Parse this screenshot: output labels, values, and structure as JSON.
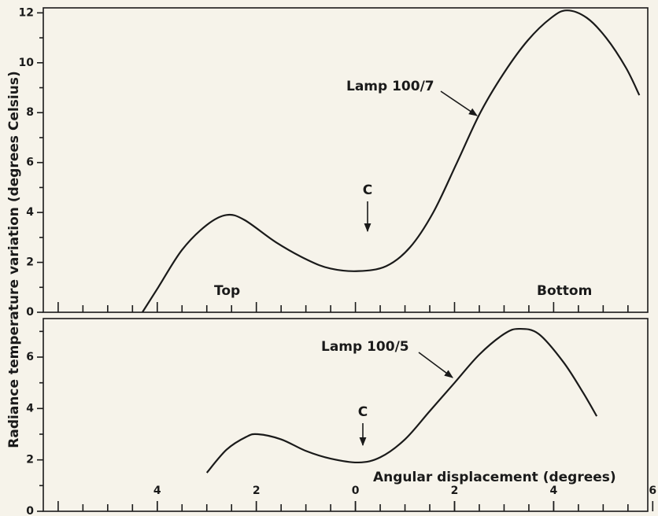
{
  "chart_data": [
    {
      "type": "line",
      "ylabel": "Radiance temperature variation (degrees Celsius)",
      "annotations": [
        "Lamp 100/7",
        "C",
        "Top",
        "Bottom"
      ],
      "series": [
        {
          "name": "Lamp 100/7",
          "color": "#1a1a1a",
          "x": [
            -4.3,
            -3.98,
            -3.5,
            -3.0,
            -2.6,
            -2.24,
            -1.6,
            -0.97,
            -0.5,
            0.06,
            0.62,
            1.1,
            1.57,
            2.05,
            2.52,
            3.0,
            3.48,
            3.95,
            4.27,
            4.67,
            5.06,
            5.46,
            5.73
          ],
          "values": [
            0,
            1.0,
            2.5,
            3.5,
            3.9,
            3.7,
            2.8,
            2.1,
            1.75,
            1.65,
            1.85,
            2.6,
            4.0,
            6.0,
            8.0,
            9.6,
            10.9,
            11.8,
            12.1,
            11.8,
            11.0,
            9.8,
            8.7
          ]
        }
      ],
      "xlim": [
        -6.3,
        5.9
      ],
      "xminorticks": [
        -6,
        -5.5,
        -5,
        -4.5,
        -4,
        -3.5,
        -3,
        -2.5,
        -2,
        -1.5,
        -1,
        -0.5,
        0,
        0.5,
        1,
        1.5,
        2,
        2.5,
        3,
        3.5,
        4,
        4.5,
        5,
        5.5
      ],
      "ylim": [
        0,
        12.2
      ],
      "yticks": [
        0,
        2,
        4,
        6,
        8,
        10,
        12
      ],
      "yminorticks": [
        1,
        3,
        5,
        7,
        9,
        11
      ]
    },
    {
      "type": "line",
      "xlabel": "Angular displacement (degrees)",
      "annotations": [
        "Lamp 100/5",
        "C"
      ],
      "series": [
        {
          "name": "Lamp 100/5",
          "color": "#1a1a1a",
          "x": [
            -3.0,
            -2.6,
            -2.2,
            -1.97,
            -1.5,
            -1.0,
            -0.5,
            0.06,
            0.5,
            1.0,
            1.5,
            2.0,
            2.5,
            3.0,
            3.3,
            3.7,
            4.2,
            4.6,
            4.87
          ],
          "values": [
            1.5,
            2.4,
            2.9,
            3.0,
            2.8,
            2.35,
            2.05,
            1.9,
            2.1,
            2.8,
            3.9,
            5.0,
            6.1,
            6.9,
            7.1,
            6.9,
            5.8,
            4.6,
            3.7
          ]
        }
      ],
      "xlim": [
        -6.3,
        5.9
      ],
      "xticks": [
        {
          "value": -4,
          "label": "4"
        },
        {
          "value": -2,
          "label": "2"
        },
        0,
        2,
        4,
        6
      ],
      "xminorticks": [
        -6,
        -5.5,
        -5,
        -4.5,
        -4,
        -3.5,
        -3,
        -2.5,
        -2,
        -1.5,
        -1,
        -0.5,
        0,
        0.5,
        1,
        1.5,
        2,
        2.5,
        3,
        3.5,
        4,
        4.5,
        5,
        5.5
      ],
      "ylim": [
        0,
        7.5
      ],
      "yticks": [
        0,
        2,
        4,
        6
      ],
      "yminorticks": [
        1,
        3,
        5,
        7
      ]
    }
  ]
}
